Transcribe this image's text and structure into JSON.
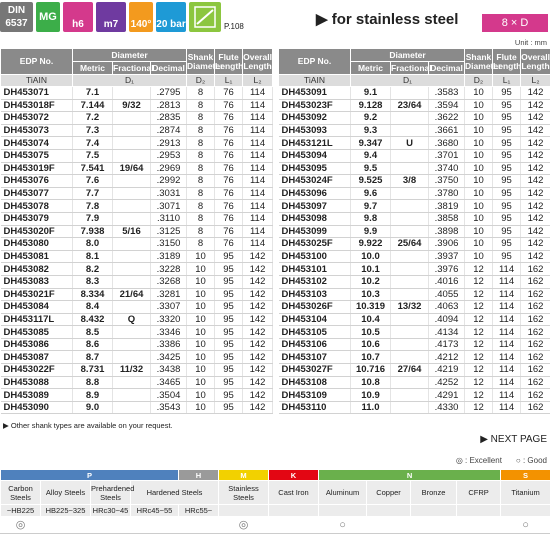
{
  "header": {
    "din": [
      "DIN",
      "6537"
    ],
    "badges": [
      "MG",
      "h6",
      "m7",
      "140°",
      "20 bar"
    ],
    "page_ref": "P.108",
    "title": "for stainless steel",
    "ratio": "8 × D",
    "unit": "Unit : mm"
  },
  "table": {
    "columns": {
      "edp": "EDP No.",
      "diameter": "Diameter",
      "metric": "Metric",
      "fractional": "Fractional",
      "decimal": "Decimal",
      "shank": "Shank Diameter",
      "flute": "Flute Length",
      "overall": "Overall Length",
      "coating": "TiAIN",
      "d1": "D₁",
      "d2": "D₂",
      "l1": "L₁",
      "l2": "L₂"
    },
    "left_rows": [
      [
        "DH453071",
        "7.1",
        null,
        ".2795",
        "8",
        "76",
        "114"
      ],
      [
        "DH453018F",
        "7.144",
        "9/32",
        ".2813",
        "8",
        "76",
        "114"
      ],
      [
        "DH453072",
        "7.2",
        null,
        ".2835",
        "8",
        "76",
        "114"
      ],
      [
        "DH453073",
        "7.3",
        null,
        ".2874",
        "8",
        "76",
        "114"
      ],
      [
        "DH453074",
        "7.4",
        null,
        ".2913",
        "8",
        "76",
        "114"
      ],
      [
        "DH453075",
        "7.5",
        null,
        ".2953",
        "8",
        "76",
        "114"
      ],
      [
        "DH453019F",
        "7.541",
        "19/64",
        ".2969",
        "8",
        "76",
        "114"
      ],
      [
        "DH453076",
        "7.6",
        null,
        ".2992",
        "8",
        "76",
        "114"
      ],
      [
        "DH453077",
        "7.7",
        null,
        ".3031",
        "8",
        "76",
        "114"
      ],
      [
        "DH453078",
        "7.8",
        null,
        ".3071",
        "8",
        "76",
        "114"
      ],
      [
        "DH453079",
        "7.9",
        null,
        ".3110",
        "8",
        "76",
        "114"
      ],
      [
        "DH453020F",
        "7.938",
        "5/16",
        ".3125",
        "8",
        "76",
        "114"
      ],
      [
        "DH453080",
        "8.0",
        null,
        ".3150",
        "8",
        "76",
        "114"
      ],
      [
        "DH453081",
        "8.1",
        null,
        ".3189",
        "10",
        "95",
        "142"
      ],
      [
        "DH453082",
        "8.2",
        null,
        ".3228",
        "10",
        "95",
        "142"
      ],
      [
        "DH453083",
        "8.3",
        null,
        ".3268",
        "10",
        "95",
        "142"
      ],
      [
        "DH453021F",
        "8.334",
        "21/64",
        ".3281",
        "10",
        "95",
        "142"
      ],
      [
        "DH453084",
        "8.4",
        null,
        ".3307",
        "10",
        "95",
        "142"
      ],
      [
        "DH453117L",
        "8.432",
        "Q",
        ".3320",
        "10",
        "95",
        "142"
      ],
      [
        "DH453085",
        "8.5",
        null,
        ".3346",
        "10",
        "95",
        "142"
      ],
      [
        "DH453086",
        "8.6",
        null,
        ".3386",
        "10",
        "95",
        "142"
      ],
      [
        "DH453087",
        "8.7",
        null,
        ".3425",
        "10",
        "95",
        "142"
      ],
      [
        "DH453022F",
        "8.731",
        "11/32",
        ".3438",
        "10",
        "95",
        "142"
      ],
      [
        "DH453088",
        "8.8",
        null,
        ".3465",
        "10",
        "95",
        "142"
      ],
      [
        "DH453089",
        "8.9",
        null,
        ".3504",
        "10",
        "95",
        "142"
      ],
      [
        "DH453090",
        "9.0",
        null,
        ".3543",
        "10",
        "95",
        "142"
      ]
    ],
    "right_rows": [
      [
        "DH453091",
        "9.1",
        null,
        ".3583",
        "10",
        "95",
        "142"
      ],
      [
        "DH453023F",
        "9.128",
        "23/64",
        ".3594",
        "10",
        "95",
        "142"
      ],
      [
        "DH453092",
        "9.2",
        null,
        ".3622",
        "10",
        "95",
        "142"
      ],
      [
        "DH453093",
        "9.3",
        null,
        ".3661",
        "10",
        "95",
        "142"
      ],
      [
        "DH453121L",
        "9.347",
        "U",
        ".3680",
        "10",
        "95",
        "142"
      ],
      [
        "DH453094",
        "9.4",
        null,
        ".3701",
        "10",
        "95",
        "142"
      ],
      [
        "DH453095",
        "9.5",
        null,
        ".3740",
        "10",
        "95",
        "142"
      ],
      [
        "DH453024F",
        "9.525",
        "3/8",
        ".3750",
        "10",
        "95",
        "142"
      ],
      [
        "DH453096",
        "9.6",
        null,
        ".3780",
        "10",
        "95",
        "142"
      ],
      [
        "DH453097",
        "9.7",
        null,
        ".3819",
        "10",
        "95",
        "142"
      ],
      [
        "DH453098",
        "9.8",
        null,
        ".3858",
        "10",
        "95",
        "142"
      ],
      [
        "DH453099",
        "9.9",
        null,
        ".3898",
        "10",
        "95",
        "142"
      ],
      [
        "DH453025F",
        "9.922",
        "25/64",
        ".3906",
        "10",
        "95",
        "142"
      ],
      [
        "DH453100",
        "10.0",
        null,
        ".3937",
        "10",
        "95",
        "142"
      ],
      [
        "DH453101",
        "10.1",
        null,
        ".3976",
        "12",
        "114",
        "162"
      ],
      [
        "DH453102",
        "10.2",
        null,
        ".4016",
        "12",
        "114",
        "162"
      ],
      [
        "DH453103",
        "10.3",
        null,
        ".4055",
        "12",
        "114",
        "162"
      ],
      [
        "DH453026F",
        "10.319",
        "13/32",
        ".4063",
        "12",
        "114",
        "162"
      ],
      [
        "DH453104",
        "10.4",
        null,
        ".4094",
        "12",
        "114",
        "162"
      ],
      [
        "DH453105",
        "10.5",
        null,
        ".4134",
        "12",
        "114",
        "162"
      ],
      [
        "DH453106",
        "10.6",
        null,
        ".4173",
        "12",
        "114",
        "162"
      ],
      [
        "DH453107",
        "10.7",
        null,
        ".4212",
        "12",
        "114",
        "162"
      ],
      [
        "DH453027F",
        "10.716",
        "27/64",
        ".4219",
        "12",
        "114",
        "162"
      ],
      [
        "DH453108",
        "10.8",
        null,
        ".4252",
        "12",
        "114",
        "162"
      ],
      [
        "DH453109",
        "10.9",
        null,
        ".4291",
        "12",
        "114",
        "162"
      ],
      [
        "DH453110",
        "11.0",
        null,
        ".4330",
        "12",
        "114",
        "162"
      ]
    ]
  },
  "notes": {
    "shank": "Other shank types are available on your request.",
    "next": "NEXT PAGE"
  },
  "legend": [
    "◎ : Excellent",
    "○ : Good"
  ],
  "materials": {
    "groups": [
      {
        "label": "P",
        "span": 4,
        "color": "#4f81bd"
      },
      {
        "label": "H",
        "span": 1,
        "color": "#9a9a9a"
      },
      {
        "label": "M",
        "span": 1,
        "color": "#f2d100"
      },
      {
        "label": "K",
        "span": 1,
        "color": "#e30613"
      },
      {
        "label": "N",
        "span": 4,
        "color": "#6ab04c"
      },
      {
        "label": "S",
        "span": 1,
        "color": "#f39200"
      }
    ],
    "names": [
      {
        "label": "Carbon Steels",
        "span": 1
      },
      {
        "label": "Alloy Steels",
        "span": 1
      },
      {
        "label": "Prehardened Steels",
        "span": 1
      },
      {
        "label": "Hardened Steels",
        "span": 2
      },
      {
        "label": "Stainless Steels",
        "span": 1
      },
      {
        "label": "Cast Iron",
        "span": 1
      },
      {
        "label": "Aluminum",
        "span": 1
      },
      {
        "label": "Copper",
        "span": 1
      },
      {
        "label": "Bronze",
        "span": 1
      },
      {
        "label": "CFRP",
        "span": 1
      },
      {
        "label": "Titanium",
        "span": 1
      }
    ],
    "hardness": [
      "~HB225",
      "HB225~325",
      "HRc30~45",
      "HRc45~55",
      "HRc55~",
      null,
      null,
      null,
      null,
      null,
      null,
      null
    ],
    "ratings": [
      "◎",
      null,
      null,
      null,
      null,
      "◎",
      null,
      "○",
      null,
      null,
      null,
      "○"
    ]
  }
}
